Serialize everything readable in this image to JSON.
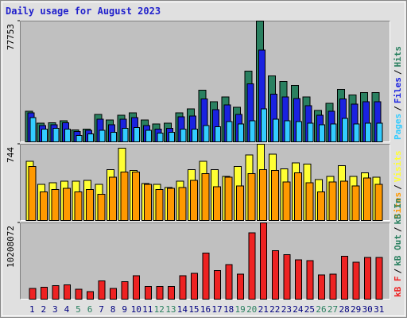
{
  "title": "Daily usage for August 2023",
  "legend_separator": "/",
  "chart_data": [
    {
      "type": "bar",
      "ylim": [
        0,
        77753
      ],
      "yticks": [
        77753
      ],
      "series": [
        {
          "name": "Hits",
          "color": "#2a8060",
          "values": [
            19700,
            11900,
            12400,
            13500,
            7800,
            8300,
            17600,
            14000,
            17100,
            18700,
            14000,
            11400,
            11900,
            18700,
            21300,
            33200,
            25900,
            29000,
            22300,
            45600,
            77753,
            42500,
            38900,
            36300,
            29000,
            20200,
            24900,
            33700,
            30100,
            31600,
            31600
          ]
        },
        {
          "name": "Files",
          "color": "#1a22e0",
          "values": [
            18700,
            10400,
            10900,
            12400,
            6700,
            7300,
            14500,
            10900,
            14500,
            15600,
            10400,
            8300,
            8800,
            16100,
            16600,
            27500,
            20700,
            23900,
            17600,
            37300,
            59100,
            30600,
            29000,
            28000,
            23300,
            17100,
            19700,
            27500,
            24400,
            25900,
            25900
          ]
        },
        {
          "name": "Pages",
          "color": "#33ccff",
          "values": [
            15600,
            8300,
            8800,
            8300,
            4100,
            5200,
            7300,
            6200,
            8800,
            9300,
            7300,
            5700,
            6200,
            8300,
            8300,
            10400,
            9800,
            13000,
            11400,
            13500,
            21300,
            14500,
            13500,
            13000,
            11900,
            10900,
            11400,
            15000,
            11400,
            11900,
            11900
          ]
        }
      ]
    },
    {
      "type": "bar",
      "ylim": [
        0,
        744
      ],
      "yticks": [
        744
      ],
      "series": [
        {
          "name": "Visits",
          "color": "#ffff33",
          "values": [
            576,
            352,
            368,
            384,
            384,
            392,
            352,
            496,
            704,
            488,
            360,
            352,
            320,
            384,
            496,
            576,
            496,
            432,
            528,
            640,
            744,
            648,
            504,
            560,
            552,
            400,
            432,
            536,
            432,
            464,
            424
          ]
        },
        {
          "name": "Sites",
          "color": "#ff9900",
          "values": [
            528,
            280,
            304,
            312,
            280,
            304,
            256,
            424,
            472,
            472,
            352,
            304,
            312,
            320,
            392,
            456,
            328,
            424,
            336,
            456,
            496,
            488,
            376,
            464,
            368,
            280,
            376,
            384,
            336,
            416,
            352
          ]
        }
      ]
    },
    {
      "type": "bar",
      "ylim": [
        0,
        10208072
      ],
      "yticks": [
        10208072
      ],
      "categories": [
        "1",
        "2",
        "3",
        "4",
        "5",
        "6",
        "7",
        "8",
        "9",
        "10",
        "11",
        "12",
        "13",
        "14",
        "15",
        "16",
        "17",
        "18",
        "19",
        "20",
        "21",
        "22",
        "23",
        "24",
        "25",
        "26",
        "27",
        "28",
        "29",
        "30",
        "31"
      ],
      "category_colors": [
        "#000080",
        "#000080",
        "#000080",
        "#000080",
        "#2a8060",
        "#2a8060",
        "#000080",
        "#000080",
        "#000080",
        "#000080",
        "#000080",
        "#2a8060",
        "#2a8060",
        "#000080",
        "#000080",
        "#000080",
        "#000080",
        "#000080",
        "#2a8060",
        "#2a8060",
        "#000080",
        "#000080",
        "#000080",
        "#000080",
        "#000080",
        "#2a8060",
        "#2a8060",
        "#000080",
        "#000080",
        "#000080",
        "#000080"
      ],
      "series": [
        {
          "name": "kB F",
          "color": "#ee2222",
          "values": [
            1458000,
            1570000,
            1795000,
            1907000,
            1346000,
            1010000,
            2468000,
            1458000,
            2356000,
            3141000,
            1683000,
            1683000,
            1683000,
            3141000,
            3478000,
            6170000,
            3814000,
            4599000,
            3365000,
            8862000,
            10208072,
            6506000,
            5945000,
            5272000,
            5160000,
            3253000,
            3365000,
            5721000,
            4936000,
            5609000,
            5609000
          ]
        }
      ],
      "extra_legend": [
        {
          "name": "kB Out",
          "color": "#2a8060"
        },
        {
          "name": "kB In",
          "color": "#2a8060"
        }
      ]
    }
  ]
}
